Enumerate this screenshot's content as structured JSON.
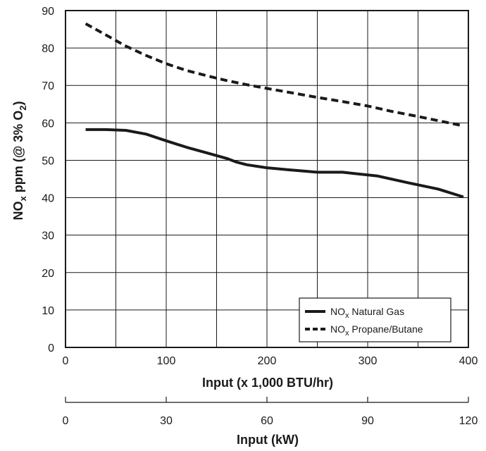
{
  "chart_data": {
    "type": "line",
    "title": "",
    "xlabel": "Input (x 1,000 BTU/hr)",
    "ylabel_main": "NO",
    "ylabel_sub": "x",
    "ylabel_rest": " ppm (@ 3% O",
    "ylabel_sub2": "2",
    "ylabel_close": ")",
    "xlim": [
      0,
      400
    ],
    "ylim": [
      0,
      90
    ],
    "xticks": [
      "0",
      "100",
      "200",
      "300",
      "400"
    ],
    "yticks": [
      "0",
      "10",
      "20",
      "30",
      "40",
      "50",
      "60",
      "70",
      "80",
      "90"
    ],
    "x_grid_step": 50,
    "grid": true,
    "legend_position": "bottom-right",
    "series": [
      {
        "name_main": "NO",
        "name_sub": "x",
        "name_rest": " Natural Gas",
        "style": "solid",
        "points": [
          [
            20,
            58.2
          ],
          [
            40,
            58.2
          ],
          [
            60,
            58
          ],
          [
            80,
            57
          ],
          [
            100,
            55.2
          ],
          [
            120,
            53.5
          ],
          [
            140,
            52
          ],
          [
            160,
            50.5
          ],
          [
            170,
            49.5
          ],
          [
            180,
            48.8
          ],
          [
            200,
            48
          ],
          [
            220,
            47.5
          ],
          [
            250,
            46.8
          ],
          [
            275,
            46.8
          ],
          [
            310,
            45.8
          ],
          [
            340,
            44
          ],
          [
            370,
            42.3
          ],
          [
            395,
            40.2
          ]
        ]
      },
      {
        "name_main": "NO",
        "name_sub": "x",
        "name_rest": " Propane/Butane",
        "style": "dashed",
        "points": [
          [
            20,
            86.5
          ],
          [
            40,
            83.5
          ],
          [
            60,
            80.5
          ],
          [
            80,
            78
          ],
          [
            100,
            75.8
          ],
          [
            120,
            74
          ],
          [
            140,
            72.6
          ],
          [
            160,
            71.3
          ],
          [
            180,
            70.2
          ],
          [
            200,
            69.2
          ],
          [
            225,
            68
          ],
          [
            250,
            66.8
          ],
          [
            275,
            65.7
          ],
          [
            300,
            64.5
          ],
          [
            325,
            63
          ],
          [
            350,
            61.7
          ],
          [
            375,
            60.3
          ],
          [
            395,
            59.2
          ]
        ]
      }
    ],
    "secondary_axis": {
      "label": "Input (kW)",
      "ticks": [
        "0",
        "30",
        "60",
        "90",
        "120"
      ],
      "values": [
        0,
        30,
        60,
        90,
        120
      ],
      "max": 120
    }
  }
}
